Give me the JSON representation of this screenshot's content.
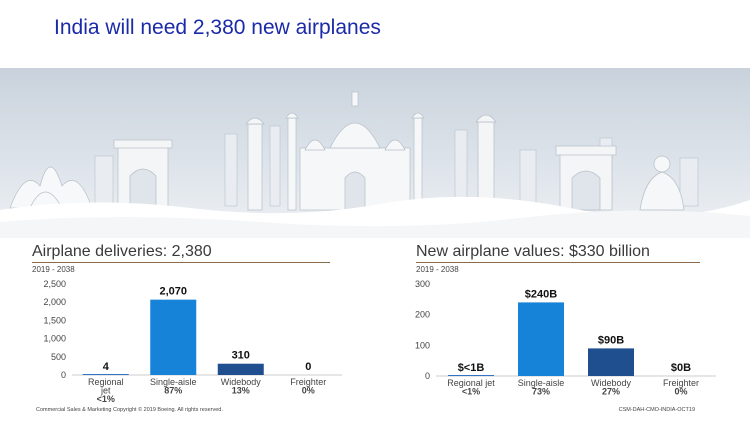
{
  "slide": {
    "title": "India will need 2,380 new airplanes"
  },
  "footer": {
    "left": "Commercial Sales & Marketing Copyright © 2019 Boeing. All rights reserved.",
    "right": "CSM-DAH-CMO-INDIA-OCT19"
  },
  "colors": {
    "title": "#1a2aa8",
    "regional": "#2f74c7",
    "single_aisle": "#1683d9",
    "widebody": "#1f4f8f",
    "freighter": "#1f4f8f"
  },
  "chart_data": [
    {
      "type": "bar",
      "title": "Airplane deliveries: 2,380",
      "subtitle": "2019 - 2038",
      "categories": [
        "Regional jet",
        "Single-aisle",
        "Widebody",
        "Freighter"
      ],
      "values": [
        4,
        2070,
        310,
        0
      ],
      "value_labels": [
        "4",
        "2,070",
        "310",
        "0"
      ],
      "share_labels": [
        "<1%",
        "87%",
        "13%",
        "0%"
      ],
      "yticks": [
        0,
        500,
        1000,
        1500,
        2000,
        2500
      ],
      "ytick_labels": [
        "0",
        "500",
        "1,000",
        "1,500",
        "2,000",
        "2,500"
      ],
      "ylim": [
        0,
        2500
      ],
      "grid": false,
      "legend": "none"
    },
    {
      "type": "bar",
      "title": "New airplane values: $330 billion",
      "subtitle": "2019 - 2038",
      "categories": [
        "Regional jet",
        "Single-aisle",
        "Widebody",
        "Freighter"
      ],
      "values": [
        0.5,
        240,
        90,
        0
      ],
      "value_labels": [
        "$<1B",
        "$240B",
        "$90B",
        "$0B"
      ],
      "share_labels": [
        "<1%",
        "73%",
        "27%",
        "0%"
      ],
      "yticks": [
        0,
        100,
        200,
        300
      ],
      "ytick_labels": [
        "0",
        "100",
        "200",
        "300"
      ],
      "ylim": [
        0,
        300
      ],
      "grid": false,
      "legend": "none"
    }
  ]
}
